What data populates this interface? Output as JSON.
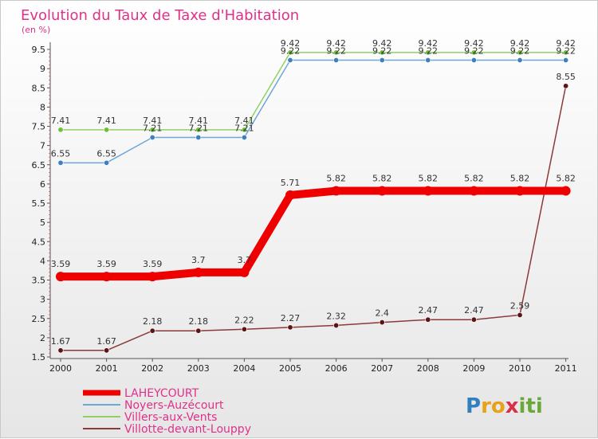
{
  "chart_data": {
    "type": "line",
    "title": "Evolution du Taux de Taxe d'Habitation",
    "subtitle": "(en %)",
    "xlabel": "",
    "ylabel": "(en %)",
    "ylim": [
      1.5,
      9.5
    ],
    "y_ticks": [
      "1.5",
      "2",
      "2.5",
      "3",
      "3.5",
      "4",
      "4.5",
      "5",
      "5.5",
      "6",
      "6.5",
      "7",
      "7.5",
      "8",
      "8.5",
      "9",
      "9.5"
    ],
    "categories": [
      "2000",
      "2001",
      "2002",
      "2003",
      "2004",
      "2005",
      "2006",
      "2007",
      "2008",
      "2009",
      "2010",
      "2011"
    ],
    "series": [
      {
        "name": "Villers-aux-Vents",
        "color": "#8fd165",
        "marker": "#6cbf3a",
        "values": [
          7.41,
          7.41,
          7.41,
          7.41,
          7.41,
          9.42,
          9.42,
          9.42,
          9.42,
          9.42,
          9.42,
          9.42
        ],
        "labels": [
          "7.41",
          "7.41",
          "7.41",
          "7.41",
          "7.41",
          "9.42",
          "9.42",
          "9.42",
          "9.42",
          "9.42",
          "9.42",
          "9.42"
        ]
      },
      {
        "name": "Noyers-Auzécourt",
        "color": "#6ea6d8",
        "marker": "#3d7fc0",
        "values": [
          6.55,
          6.55,
          7.21,
          7.21,
          7.21,
          9.22,
          9.22,
          9.22,
          9.22,
          9.22,
          9.22,
          9.22
        ],
        "labels": [
          "6.55",
          "6.55",
          "7.21",
          "7.21",
          "7.21",
          "9.22",
          "9.22",
          "9.22",
          "9.22",
          "9.22",
          "9.22",
          "9.22"
        ]
      },
      {
        "name": "Villotte-devant-Louppy",
        "color": "#8a3a3a",
        "marker": "#5c1414",
        "values": [
          1.67,
          1.67,
          2.18,
          2.18,
          2.22,
          2.27,
          2.32,
          2.4,
          2.47,
          2.47,
          2.59,
          8.55
        ],
        "labels": [
          "1.67",
          "1.67",
          "2.18",
          "2.18",
          "2.22",
          "2.27",
          "2.32",
          "2.4",
          "2.47",
          "2.47",
          "2.59",
          "8.55"
        ]
      },
      {
        "name": "LAHEYCOURT",
        "color": "#ee0000",
        "marker": "#ee0000",
        "values": [
          3.59,
          3.59,
          3.59,
          3.7,
          3.7,
          5.71,
          5.82,
          5.82,
          5.82,
          5.82,
          5.82,
          5.82
        ],
        "labels": [
          "3.59",
          "3.59",
          "3.59",
          "3.7",
          "3.7",
          "5.71",
          "5.82",
          "5.82",
          "5.82",
          "5.82",
          "5.82",
          "5.82"
        ]
      }
    ],
    "legend": [
      "LAHEYCOURT",
      "Noyers-Auzécourt",
      "Villers-aux-Vents",
      "Villotte-devant-Louppy"
    ],
    "legend_position": "bottom-left",
    "grid": false
  },
  "logo": {
    "text": "Proxiti",
    "letters": [
      "P",
      "r",
      "o",
      "x",
      "i",
      "t",
      "i"
    ]
  }
}
